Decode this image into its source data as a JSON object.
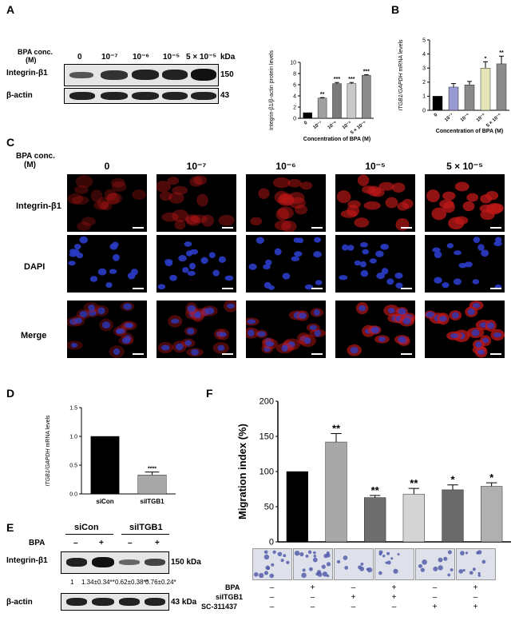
{
  "panels": {
    "A": "A",
    "B": "B",
    "C": "C",
    "D": "D",
    "E": "E",
    "F": "F"
  },
  "panelA": {
    "bpa_label_line1": "BPA conc.",
    "bpa_label_line2": "(M)",
    "conc_labels": [
      "0",
      "10⁻⁷",
      "10⁻⁶",
      "10⁻⁵",
      "5 × 10⁻⁵"
    ],
    "kda_label": "kDa",
    "rows": [
      {
        "name": "Integrin-β1",
        "kda": "150"
      },
      {
        "name": "β-actin",
        "kda": "43"
      }
    ]
  },
  "panelC": {
    "bpa_label_line1": "BPA conc.",
    "bpa_label_line2": "(M)",
    "conc_labels": [
      "0",
      "10⁻⁷",
      "10⁻⁶",
      "10⁻⁵",
      "5 × 10⁻⁵"
    ],
    "rows": [
      "Integrin-β1",
      "DAPI",
      "Merge"
    ],
    "colors": {
      "integrin": "#c01818",
      "dapi": "#2a3cc8"
    }
  },
  "panelE": {
    "groups": [
      "siCon",
      "siITGB1"
    ],
    "bpa_label": "BPA",
    "signs": [
      "–",
      "+",
      "–",
      "+"
    ],
    "rows": [
      {
        "name": "Integrin-β1",
        "kda": "150 kDa"
      },
      {
        "name": "β-actin",
        "kda": "43 kDa"
      }
    ],
    "quant": [
      "1",
      "1.34±0.34**",
      "0.62±0.38**",
      "0.76±0.24*"
    ]
  },
  "panelF": {
    "rows": [
      {
        "name": "BPA",
        "signs": [
          "–",
          "+",
          "–",
          "+",
          "–",
          "+"
        ]
      },
      {
        "name": "siITGB1",
        "signs": [
          "–",
          "–",
          "+",
          "+",
          "–",
          "–"
        ]
      },
      {
        "name": "SC-311437",
        "signs": [
          "–",
          "–",
          "–",
          "–",
          "+",
          "+"
        ]
      }
    ]
  },
  "chart_data": [
    {
      "id": "A-bar",
      "type": "bar",
      "categories": [
        "0",
        "10⁻⁷",
        "10⁻⁶",
        "10⁻⁵",
        "5 × 10⁻⁵"
      ],
      "values": [
        1.0,
        3.6,
        6.2,
        6.2,
        7.7
      ],
      "errors": [
        0,
        0.1,
        0.2,
        0.2,
        0.1
      ],
      "significance": [
        "",
        "**",
        "***",
        "***",
        "***"
      ],
      "colors": [
        "#000000",
        "#a0a0a0",
        "#7a7a7a",
        "#c8c8c8",
        "#8c8c8c"
      ],
      "ylabel": "Integrin-β1/β-actin protein levels",
      "xlabel": "Concentration of BPA (M)",
      "ylim": [
        0,
        10
      ],
      "yticks": [
        0,
        2,
        4,
        6,
        8,
        10
      ]
    },
    {
      "id": "B-bar",
      "type": "bar",
      "categories": [
        "0",
        "10⁻⁷",
        "10⁻⁶",
        "10⁻⁵",
        "5 × 10⁻⁵"
      ],
      "values": [
        1.0,
        1.65,
        1.8,
        3.0,
        3.3
      ],
      "errors": [
        0,
        0.25,
        0.25,
        0.45,
        0.55
      ],
      "significance": [
        "",
        "",
        "",
        "*",
        "**"
      ],
      "colors": [
        "#000000",
        "#9a9ad2",
        "#8a8a8a",
        "#e4e4b8",
        "#8c8c8c"
      ],
      "ylabel": "ITGB1/GAPDH mRNA levels",
      "xlabel": "Concentration of BPA (M)",
      "ylim": [
        0,
        5
      ],
      "yticks": [
        0,
        1,
        2,
        3,
        4,
        5
      ]
    },
    {
      "id": "D-bar",
      "type": "bar",
      "categories": [
        "siCon",
        "siITGB1"
      ],
      "values": [
        1.0,
        0.33
      ],
      "errors": [
        0,
        0.05
      ],
      "significance": [
        "",
        "****"
      ],
      "colors": [
        "#000000",
        "#a8a8a8"
      ],
      "ylabel": "ITGB1/GAPDH mRNA levels",
      "ylim": [
        0,
        1.5
      ],
      "yticks": [
        0.0,
        0.5,
        1.0,
        1.5
      ]
    },
    {
      "id": "F-bar",
      "type": "bar",
      "categories": [
        "1",
        "2",
        "3",
        "4",
        "5",
        "6"
      ],
      "values": [
        100,
        142,
        63,
        68,
        74,
        79
      ],
      "errors": [
        0,
        12,
        3,
        8,
        7,
        5
      ],
      "significance": [
        "",
        "**",
        "**",
        "**",
        "*",
        "*"
      ],
      "colors": [
        "#000000",
        "#a8a8a8",
        "#6e6e6e",
        "#d4d4d4",
        "#6a6a6a",
        "#b0b0b0"
      ],
      "ylabel": "Migration index (%)",
      "ylim": [
        0,
        200
      ],
      "yticks": [
        0,
        50,
        100,
        150,
        200
      ]
    }
  ]
}
